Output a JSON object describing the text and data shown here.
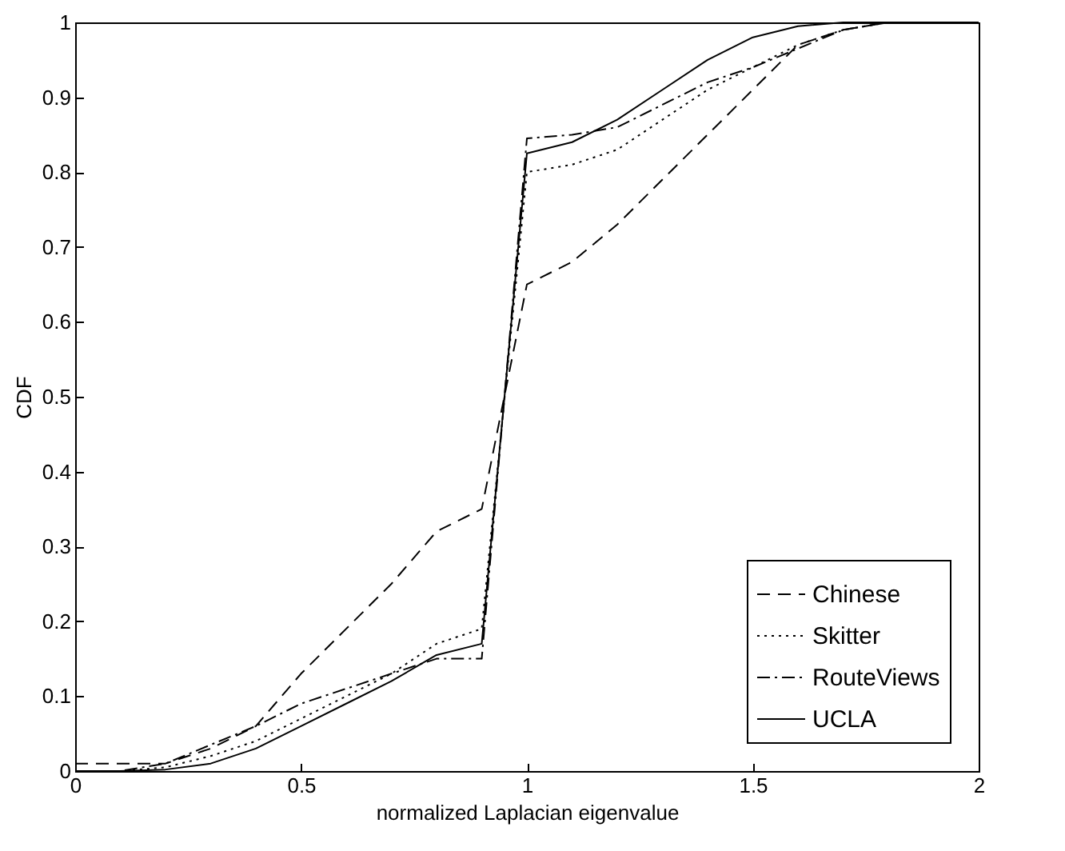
{
  "chart_data": {
    "type": "line",
    "xlabel": "normalized Laplacian eigenvalue",
    "ylabel": "CDF",
    "x": [
      0,
      0.1,
      0.2,
      0.3,
      0.4,
      0.5,
      0.6,
      0.7,
      0.8,
      0.9,
      1.0,
      1.1,
      1.2,
      1.3,
      1.4,
      1.5,
      1.6,
      1.7,
      1.8,
      2.0
    ],
    "series": [
      {
        "name": "Chinese",
        "color": "#000000",
        "line_style": "dashed",
        "values": [
          0.01,
          0.01,
          0.01,
          0.03,
          0.06,
          0.13,
          0.19,
          0.25,
          0.32,
          0.35,
          0.65,
          0.68,
          0.73,
          0.79,
          0.85,
          0.91,
          0.97,
          0.99,
          1,
          1
        ]
      },
      {
        "name": "Skitter",
        "color": "#000000",
        "line_style": "dotted",
        "values": [
          0,
          0,
          0.005,
          0.02,
          0.04,
          0.07,
          0.1,
          0.13,
          0.17,
          0.19,
          0.8,
          0.81,
          0.83,
          0.87,
          0.91,
          0.94,
          0.97,
          0.99,
          1,
          1
        ]
      },
      {
        "name": "RouteViews",
        "color": "#000000",
        "line_style": "dashdot",
        "values": [
          0,
          0,
          0.01,
          0.035,
          0.06,
          0.09,
          0.11,
          0.13,
          0.15,
          0.15,
          0.845,
          0.85,
          0.86,
          0.89,
          0.92,
          0.94,
          0.965,
          0.99,
          1,
          1
        ]
      },
      {
        "name": "UCLA",
        "color": "#000000",
        "line_style": "solid",
        "values": [
          0,
          0,
          0.002,
          0.01,
          0.03,
          0.06,
          0.09,
          0.12,
          0.155,
          0.17,
          0.825,
          0.84,
          0.87,
          0.91,
          0.95,
          0.98,
          0.995,
          1,
          1,
          1
        ]
      }
    ],
    "xlim": [
      0,
      2
    ],
    "xticks": [
      0,
      0.5,
      1,
      1.5,
      2
    ],
    "ylim": [
      0,
      1
    ],
    "yticks": [
      0,
      0.1,
      0.2,
      0.3,
      0.4,
      0.5,
      0.6,
      0.7,
      0.8,
      0.9,
      1
    ],
    "grid": false,
    "legend": "bottom right"
  }
}
